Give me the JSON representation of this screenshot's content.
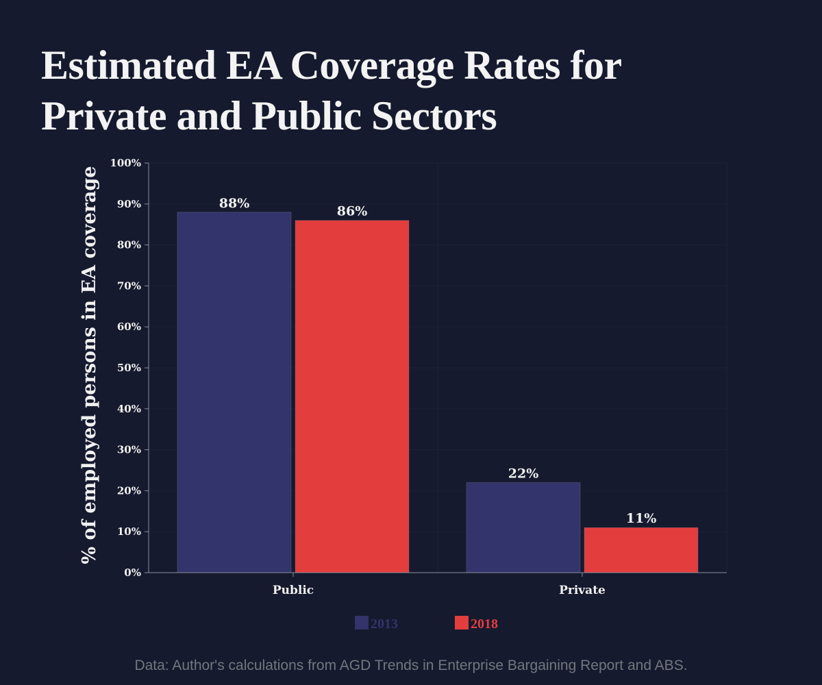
{
  "header": {
    "title_line1": "Estimated EA Coverage Rates for",
    "title_line2": "Private and Public Sectors"
  },
  "source_note": "Data: Author's calculations from AGD Trends in Enterprise Bargaining Report and ABS.",
  "colors": {
    "background": "#151a2e",
    "series_2013": "#33346b",
    "series_2018": "#e33d3e",
    "text": "#f1f1f1",
    "axis": "#8a8d99",
    "grid": "#1d2236"
  },
  "chart_data": {
    "type": "bar",
    "title": "Estimated EA Coverage Rates for Private and Public Sectors",
    "xlabel": "",
    "ylabel": "% of employed persons in EA coverage",
    "categories": [
      "Public",
      "Private"
    ],
    "series": [
      {
        "name": "2013",
        "values": [
          88,
          22
        ],
        "labels": [
          "88%",
          "22%"
        ],
        "color": "#33346b"
      },
      {
        "name": "2018",
        "values": [
          86,
          11
        ],
        "labels": [
          "86%",
          "11%"
        ],
        "color": "#e33d3e"
      }
    ],
    "ylim": [
      0,
      100
    ],
    "yticks": [
      0,
      10,
      20,
      30,
      40,
      50,
      60,
      70,
      80,
      90,
      100
    ],
    "ytick_labels": [
      "0%",
      "10%",
      "20%",
      "30%",
      "40%",
      "50%",
      "60%",
      "70%",
      "80%",
      "90%",
      "100%"
    ],
    "grid": true,
    "legend": {
      "position": "bottom-center",
      "entries": [
        "2013",
        "2018"
      ]
    }
  }
}
